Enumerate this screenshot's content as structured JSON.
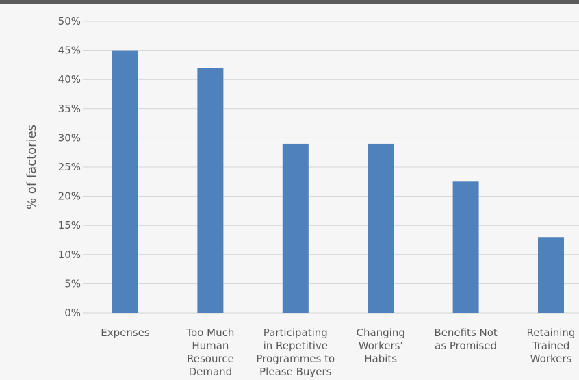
{
  "chart_data": {
    "type": "bar",
    "title": "",
    "xlabel": "",
    "ylabel": "% of factories",
    "ylim": [
      0,
      50
    ],
    "yticks": [
      0,
      5,
      10,
      15,
      20,
      25,
      30,
      35,
      40,
      45,
      50
    ],
    "tick_suffix": "%",
    "grid": true,
    "bar_color": "#4f81bd",
    "categories": [
      "Expenses",
      "Too Much Human Resource Demand",
      "Participating in Repetitive Programmes to Please Buyers",
      "Changing Workers' Habits",
      "Benefits Not as Promised",
      "Retaining Trained Workers"
    ],
    "category_lines": [
      [
        "Expenses"
      ],
      [
        "Too Much",
        "Human",
        "Resource",
        "Demand"
      ],
      [
        "Participating",
        "in Repetitive",
        "Programmes to",
        "Please Buyers"
      ],
      [
        "Changing",
        "Workers'",
        "Habits"
      ],
      [
        "Benefits Not",
        "as Promised"
      ],
      [
        "Retaining",
        "Trained",
        "Workers"
      ]
    ],
    "values": [
      45,
      42,
      29,
      29,
      22.5,
      13
    ]
  }
}
